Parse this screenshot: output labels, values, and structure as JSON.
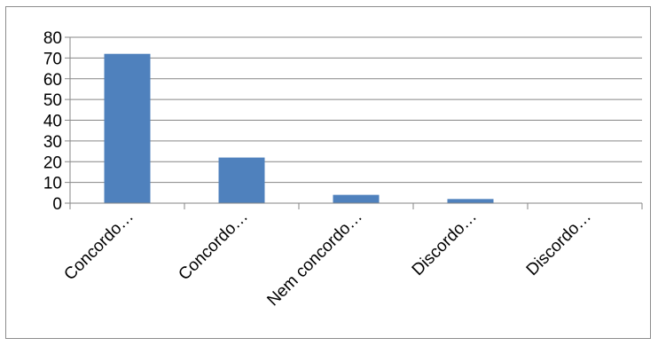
{
  "chart_data": {
    "type": "bar",
    "categories": [
      "Concordo…",
      "Concordo…",
      "Nem concordo…",
      "Discordo…",
      "Discordo…"
    ],
    "values": [
      72,
      22,
      4,
      2,
      0
    ],
    "ylim": [
      0,
      80
    ],
    "yticks": [
      0,
      10,
      20,
      30,
      40,
      50,
      60,
      70,
      80
    ],
    "grid": true,
    "bar_color": "#4f81bd",
    "grid_color": "#868686",
    "axis_color": "#868686"
  }
}
